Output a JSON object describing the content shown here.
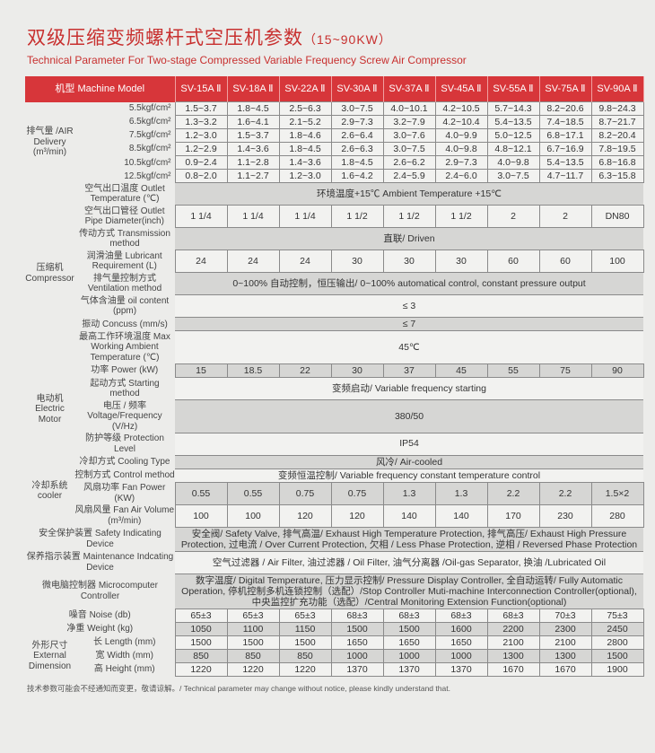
{
  "title_cn": "双级压缩变频螺杆式空压机参数",
  "title_range": "（15~90KW）",
  "title_en": "Technical Parameter For Two-stage Compressed Variable Frequency Screw Air Compressor",
  "header_label": "机型 Machine Model",
  "models": [
    "SV-15A Ⅱ",
    "SV-18A Ⅱ",
    "SV-22A Ⅱ",
    "SV-30A Ⅱ",
    "SV-37A Ⅱ",
    "SV-45A Ⅱ",
    "SV-55A Ⅱ",
    "SV-75A Ⅱ",
    "SV-90A Ⅱ"
  ],
  "air_delivery": {
    "group": "排气量 /AIR Delivery (m³/min)",
    "rows": [
      {
        "label": "5.5kgf/cm²",
        "values": [
          "1.5~3.7",
          "1.8~4.5",
          "2.5~6.3",
          "3.0~7.5",
          "4.0~10.1",
          "4.2~10.5",
          "5.7~14.3",
          "8.2~20.6",
          "9.8~24.3"
        ]
      },
      {
        "label": "6.5kgf/cm²",
        "values": [
          "1.3~3.2",
          "1.6~4.1",
          "2.1~5.2",
          "2.9~7.3",
          "3.2~7.9",
          "4.2~10.4",
          "5.4~13.5",
          "7.4~18.5",
          "8.7~21.7"
        ]
      },
      {
        "label": "7.5kgf/cm²",
        "values": [
          "1.2~3.0",
          "1.5~3.7",
          "1.8~4.6",
          "2.6~6.4",
          "3.0~7.6",
          "4.0~9.9",
          "5.0~12.5",
          "6.8~17.1",
          "8.2~20.4"
        ]
      },
      {
        "label": "8.5kgf/cm²",
        "values": [
          "1.2~2.9",
          "1.4~3.6",
          "1.8~4.5",
          "2.6~6.3",
          "3.0~7.5",
          "4.0~9.8",
          "4.8~12.1",
          "6.7~16.9",
          "7.8~19.5"
        ]
      },
      {
        "label": "10.5kgf/cm²",
        "values": [
          "0.9~2.4",
          "1.1~2.8",
          "1.4~3.6",
          "1.8~4.5",
          "2.6~6.2",
          "2.9~7.3",
          "4.0~9.8",
          "5.4~13.5",
          "6.8~16.8"
        ]
      },
      {
        "label": "12.5kgf/cm²",
        "values": [
          "0.8~2.0",
          "1.1~2.7",
          "1.2~3.0",
          "1.6~4.2",
          "2.4~5.9",
          "2.4~6.0",
          "3.0~7.5",
          "4.7~11.7",
          "6.3~15.8"
        ]
      }
    ]
  },
  "groups": [
    {
      "group": "压缩机 Compressor",
      "rows": [
        {
          "label": "空气出口温度 Outlet Temperature (℃)",
          "span": "环境温度+15℃ Ambient Temperature +15℃"
        },
        {
          "label": "空气出口管径 Outlet Pipe Diameter(inch)",
          "values": [
            "1 1/4",
            "1 1/4",
            "1 1/4",
            "1 1/2",
            "1 1/2",
            "1 1/2",
            "2",
            "2",
            "DN80"
          ]
        },
        {
          "label": "传动方式 Transmission method",
          "span": "直联/ Driven"
        },
        {
          "label": "润滑油量 Lubricant Requirement (L)",
          "values": [
            "24",
            "24",
            "24",
            "30",
            "30",
            "30",
            "60",
            "60",
            "100"
          ]
        },
        {
          "label": "排气量控制方式 Ventilation method",
          "span": "0~100% 自动控制，恒压输出/ 0~100% automatical control, constant pressure output"
        },
        {
          "label": "气体含油量 oil content (ppm)",
          "span": "≤ 3"
        },
        {
          "label": "振动 Concuss (mm/s)",
          "span": "≤ 7"
        },
        {
          "label": "最高工作环境温度 Max Working Ambient Temperature (℃)",
          "span": "45℃"
        }
      ]
    },
    {
      "group": "电动机 Electric Motor",
      "rows": [
        {
          "label": "功率 Power (kW)",
          "values": [
            "15",
            "18.5",
            "22",
            "30",
            "37",
            "45",
            "55",
            "75",
            "90"
          ]
        },
        {
          "label": "起动方式 Starting method",
          "span": "变频启动/ Variable frequency starting"
        },
        {
          "label": "电压 / 频率 Voltage/Frequency (V/Hz)",
          "span": "380/50"
        },
        {
          "label": "防护等级 Protection Level",
          "span": "IP54"
        }
      ]
    },
    {
      "group": "冷却系统 cooler",
      "rows": [
        {
          "label": "冷却方式 Cooling Type",
          "span": "风冷/ Air-cooled"
        },
        {
          "label": "控制方式 Control method",
          "span": "变频恒温控制/ Variable frequency constant temperature control"
        },
        {
          "label": "风扇功率 Fan Power (KW)",
          "values": [
            "0.55",
            "0.55",
            "0.75",
            "0.75",
            "1.3",
            "1.3",
            "2.2",
            "2.2",
            "1.5×2"
          ]
        },
        {
          "label": "风扇风量 Fan Air Volume (m³/min)",
          "values": [
            "100",
            "100",
            "120",
            "120",
            "140",
            "140",
            "170",
            "230",
            "280"
          ]
        }
      ]
    },
    {
      "group": "",
      "rows": [
        {
          "label": "安全保护装置 Safety Indicating Device",
          "span": "安全阀/ Safety Valve, 排气高温/ Exhaust High Temperature Protection, 排气高压/ Exhaust High Pressure Protection, 过电流 / Over Current Protection, 欠相 / Less Phase Protection, 逆相 / Reversed Phase Protection"
        },
        {
          "label": "保养指示装置 Maintenance Indcating Device",
          "span": "空气过滤器 / Air Filter, 油过滤器 / Oil Filter, 油气分离器 /Oil-gas Separator, 换油 /Lubricated Oil"
        },
        {
          "label": "微电脑控制器 Microcomputer Controller",
          "span": "数字温度/ Digital Temperature, 压力显示控制/ Pressure Display Controller, 全自动运转/ Fully Automatic Operation, 停机控制多机连锁控制（选配）/Stop Controller Muti-machine Interconnection Controller(optional), 中央监控扩充功能（选配）/Central Monitoring Extension Function(optional)"
        },
        {
          "label": "噪音 Noise (db)",
          "values": [
            "65±3",
            "65±3",
            "65±3",
            "68±3",
            "68±3",
            "68±3",
            "68±3",
            "70±3",
            "75±3"
          ]
        },
        {
          "label": "净重 Weight (kg)",
          "values": [
            "1050",
            "1100",
            "1150",
            "1500",
            "1500",
            "1600",
            "2200",
            "2300",
            "2450"
          ]
        }
      ]
    },
    {
      "group": "外形尺寸 External Dimension",
      "rows": [
        {
          "label": "长 Length (mm)",
          "values": [
            "1500",
            "1500",
            "1500",
            "1650",
            "1650",
            "1650",
            "2100",
            "2100",
            "2800"
          ]
        },
        {
          "label": "宽 Width (mm)",
          "values": [
            "850",
            "850",
            "850",
            "1000",
            "1000",
            "1000",
            "1300",
            "1300",
            "1500"
          ]
        },
        {
          "label": "高 Height (mm)",
          "values": [
            "1220",
            "1220",
            "1220",
            "1370",
            "1370",
            "1370",
            "1670",
            "1670",
            "1900"
          ]
        }
      ]
    }
  ],
  "note": "技术参数可能会不经通知而变更，敬请谅解。/ Technical parameter may change without notice, please kindly understand that."
}
